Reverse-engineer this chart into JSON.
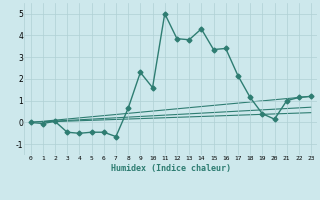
{
  "xlabel": "Humidex (Indice chaleur)",
  "ylabel": "",
  "xlim": [
    -0.5,
    23.5
  ],
  "ylim": [
    -1.5,
    5.5
  ],
  "xticks": [
    0,
    1,
    2,
    3,
    4,
    5,
    6,
    7,
    8,
    9,
    10,
    11,
    12,
    13,
    14,
    15,
    16,
    17,
    18,
    19,
    20,
    21,
    22,
    23
  ],
  "yticks": [
    -1,
    0,
    1,
    2,
    3,
    4,
    5
  ],
  "background_color": "#cde8ec",
  "grid_color": "#b0d0d5",
  "line_color": "#2e7d72",
  "main_line": {
    "x": [
      0,
      1,
      2,
      3,
      4,
      5,
      6,
      7,
      8,
      9,
      10,
      11,
      12,
      13,
      14,
      15,
      16,
      17,
      18,
      19,
      20,
      21,
      22,
      23
    ],
    "y": [
      0.0,
      -0.05,
      0.05,
      -0.45,
      -0.5,
      -0.45,
      -0.45,
      -0.65,
      0.65,
      2.3,
      1.6,
      5.0,
      3.85,
      3.8,
      4.3,
      3.35,
      3.4,
      2.15,
      1.15,
      0.4,
      0.15,
      1.0,
      1.15,
      1.2
    ],
    "marker": "D",
    "markersize": 2.5,
    "linewidth": 1.0
  },
  "trend_lines": [
    {
      "x": [
        0,
        23
      ],
      "y": [
        0.0,
        1.2
      ]
    },
    {
      "x": [
        0,
        23
      ],
      "y": [
        0.0,
        0.7
      ]
    },
    {
      "x": [
        0,
        23
      ],
      "y": [
        0.0,
        0.45
      ]
    }
  ]
}
